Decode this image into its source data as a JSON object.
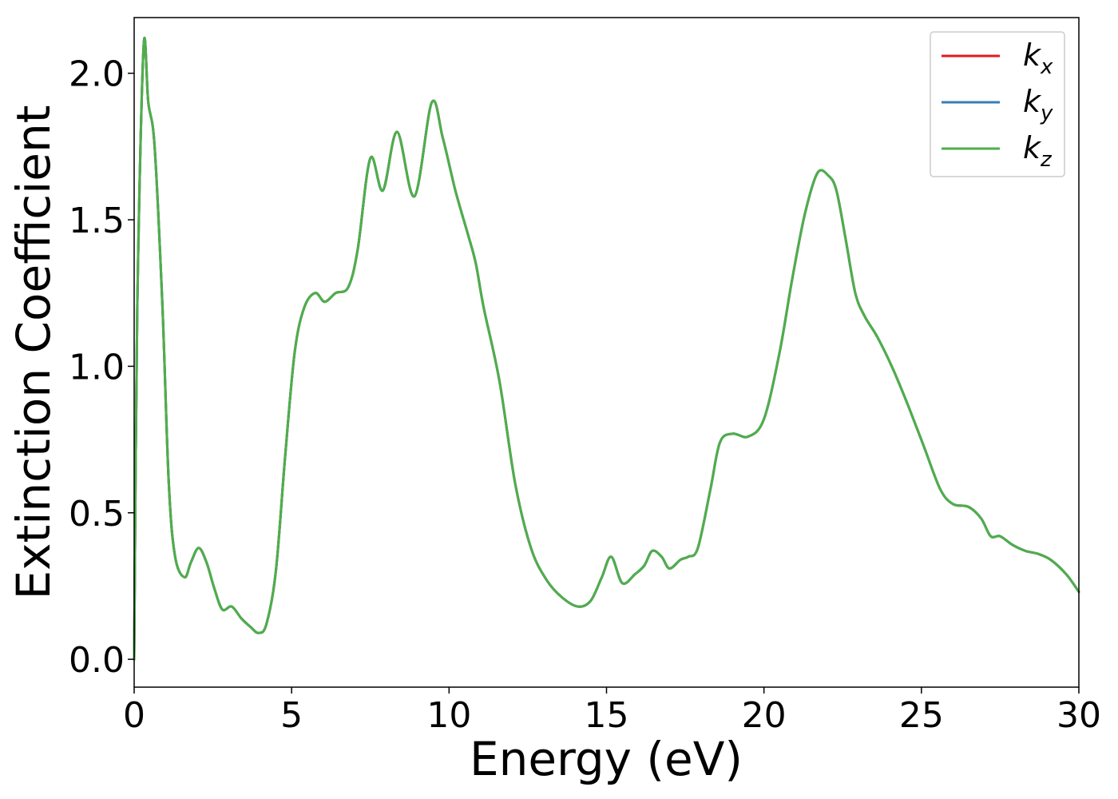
{
  "chart_data": {
    "type": "line",
    "xlabel": "Energy (eV)",
    "ylabel": "Extinction Coefficient",
    "xlim": [
      0,
      30
    ],
    "ylim": [
      -0.095,
      2.19
    ],
    "xticks": [
      0,
      5,
      10,
      15,
      20,
      25,
      30
    ],
    "xtick_labels": [
      "0",
      "5",
      "10",
      "15",
      "20",
      "25",
      "30"
    ],
    "yticks": [
      0.0,
      0.5,
      1.0,
      1.5,
      2.0
    ],
    "ytick_labels": [
      "0.0",
      "0.5",
      "1.0",
      "1.5",
      "2.0"
    ],
    "grid": false,
    "legend_position": "top-right",
    "series": [
      {
        "name": "k_x",
        "label_main": "k",
        "label_sub": "x",
        "color": "#e41a1c",
        "x": [
          0,
          0.1,
          0.3,
          0.45,
          0.65,
          0.9,
          1.1,
          1.3,
          1.6,
          1.8,
          2.05,
          2.3,
          2.55,
          2.8,
          3.1,
          3.4,
          3.7,
          3.95,
          4.2,
          4.5,
          4.8,
          5.1,
          5.4,
          5.75,
          6.05,
          6.4,
          6.8,
          7.1,
          7.5,
          7.9,
          8.35,
          8.9,
          9.45,
          9.8,
          10.2,
          10.6,
          10.85,
          11.1,
          11.6,
          12.1,
          12.6,
          13.1,
          13.6,
          14.1,
          14.5,
          14.85,
          15.15,
          15.5,
          15.9,
          16.2,
          16.45,
          16.75,
          17.0,
          17.35,
          17.6,
          17.9,
          18.3,
          18.6,
          19.0,
          19.5,
          20.0,
          20.5,
          20.9,
          21.3,
          21.7,
          22.05,
          22.3,
          22.6,
          22.9,
          23.2,
          23.6,
          24.1,
          24.6,
          25.1,
          25.6,
          26.0,
          26.5,
          26.9,
          27.2,
          27.5,
          27.9,
          28.3,
          28.7,
          29.1,
          29.6,
          30.0
        ],
        "y": [
          0.0,
          1.2,
          2.09,
          1.9,
          1.75,
          1.2,
          0.6,
          0.35,
          0.28,
          0.33,
          0.38,
          0.33,
          0.24,
          0.17,
          0.18,
          0.14,
          0.11,
          0.09,
          0.12,
          0.3,
          0.7,
          1.05,
          1.2,
          1.25,
          1.22,
          1.25,
          1.27,
          1.4,
          1.71,
          1.6,
          1.8,
          1.58,
          1.9,
          1.78,
          1.6,
          1.45,
          1.35,
          1.2,
          0.95,
          0.6,
          0.38,
          0.27,
          0.21,
          0.18,
          0.2,
          0.28,
          0.35,
          0.26,
          0.29,
          0.32,
          0.37,
          0.35,
          0.31,
          0.34,
          0.35,
          0.38,
          0.58,
          0.74,
          0.77,
          0.76,
          0.82,
          1.05,
          1.3,
          1.52,
          1.66,
          1.65,
          1.6,
          1.43,
          1.25,
          1.17,
          1.1,
          0.99,
          0.86,
          0.72,
          0.58,
          0.53,
          0.52,
          0.48,
          0.42,
          0.42,
          0.39,
          0.37,
          0.36,
          0.34,
          0.29,
          0.23
        ]
      },
      {
        "name": "k_y",
        "label_main": "k",
        "label_sub": "y",
        "color": "#377eb8",
        "x": [
          0,
          0.1,
          0.3,
          0.45,
          0.65,
          0.9,
          1.1,
          1.3,
          1.6,
          1.8,
          2.05,
          2.3,
          2.55,
          2.8,
          3.1,
          3.4,
          3.7,
          3.95,
          4.2,
          4.5,
          4.8,
          5.1,
          5.4,
          5.75,
          6.05,
          6.4,
          6.8,
          7.1,
          7.5,
          7.9,
          8.35,
          8.9,
          9.45,
          9.8,
          10.2,
          10.6,
          10.85,
          11.1,
          11.6,
          12.1,
          12.6,
          13.1,
          13.6,
          14.1,
          14.5,
          14.85,
          15.15,
          15.5,
          15.9,
          16.2,
          16.45,
          16.75,
          17.0,
          17.35,
          17.6,
          17.9,
          18.3,
          18.6,
          19.0,
          19.5,
          20.0,
          20.5,
          20.9,
          21.3,
          21.7,
          22.05,
          22.3,
          22.6,
          22.9,
          23.2,
          23.6,
          24.1,
          24.6,
          25.1,
          25.6,
          26.0,
          26.5,
          26.9,
          27.2,
          27.5,
          27.9,
          28.3,
          28.7,
          29.1,
          29.6,
          30.0
        ],
        "y": [
          0.0,
          1.2,
          2.09,
          1.9,
          1.75,
          1.2,
          0.6,
          0.35,
          0.28,
          0.33,
          0.38,
          0.33,
          0.24,
          0.17,
          0.18,
          0.14,
          0.11,
          0.09,
          0.12,
          0.3,
          0.7,
          1.05,
          1.2,
          1.25,
          1.22,
          1.25,
          1.27,
          1.4,
          1.71,
          1.6,
          1.8,
          1.58,
          1.9,
          1.78,
          1.6,
          1.45,
          1.35,
          1.2,
          0.95,
          0.6,
          0.38,
          0.27,
          0.21,
          0.18,
          0.2,
          0.28,
          0.35,
          0.26,
          0.29,
          0.32,
          0.37,
          0.35,
          0.31,
          0.34,
          0.35,
          0.38,
          0.58,
          0.74,
          0.77,
          0.76,
          0.82,
          1.05,
          1.3,
          1.52,
          1.66,
          1.65,
          1.6,
          1.43,
          1.25,
          1.17,
          1.1,
          0.99,
          0.86,
          0.72,
          0.58,
          0.53,
          0.52,
          0.48,
          0.42,
          0.42,
          0.39,
          0.37,
          0.36,
          0.34,
          0.29,
          0.23
        ]
      },
      {
        "name": "k_z",
        "label_main": "k",
        "label_sub": "z",
        "color": "#4daf4a",
        "x": [
          0,
          0.1,
          0.3,
          0.45,
          0.65,
          0.9,
          1.1,
          1.3,
          1.6,
          1.8,
          2.05,
          2.3,
          2.55,
          2.8,
          3.1,
          3.4,
          3.7,
          3.95,
          4.2,
          4.5,
          4.8,
          5.1,
          5.4,
          5.75,
          6.05,
          6.4,
          6.8,
          7.1,
          7.5,
          7.9,
          8.35,
          8.9,
          9.45,
          9.8,
          10.2,
          10.6,
          10.85,
          11.1,
          11.6,
          12.1,
          12.6,
          13.1,
          13.6,
          14.1,
          14.5,
          14.85,
          15.15,
          15.5,
          15.9,
          16.2,
          16.45,
          16.75,
          17.0,
          17.35,
          17.6,
          17.9,
          18.3,
          18.6,
          19.0,
          19.5,
          20.0,
          20.5,
          20.9,
          21.3,
          21.7,
          22.05,
          22.3,
          22.6,
          22.9,
          23.2,
          23.6,
          24.1,
          24.6,
          25.1,
          25.6,
          26.0,
          26.5,
          26.9,
          27.2,
          27.5,
          27.9,
          28.3,
          28.7,
          29.1,
          29.6,
          30.0
        ],
        "y": [
          0.0,
          1.2,
          2.09,
          1.9,
          1.75,
          1.2,
          0.6,
          0.35,
          0.28,
          0.33,
          0.38,
          0.33,
          0.24,
          0.17,
          0.18,
          0.14,
          0.11,
          0.09,
          0.12,
          0.3,
          0.7,
          1.05,
          1.2,
          1.25,
          1.22,
          1.25,
          1.27,
          1.4,
          1.71,
          1.6,
          1.8,
          1.58,
          1.9,
          1.78,
          1.6,
          1.45,
          1.35,
          1.2,
          0.95,
          0.6,
          0.38,
          0.27,
          0.21,
          0.18,
          0.2,
          0.28,
          0.35,
          0.26,
          0.29,
          0.32,
          0.37,
          0.35,
          0.31,
          0.34,
          0.35,
          0.38,
          0.58,
          0.74,
          0.77,
          0.76,
          0.82,
          1.05,
          1.3,
          1.52,
          1.66,
          1.65,
          1.6,
          1.43,
          1.25,
          1.17,
          1.1,
          0.99,
          0.86,
          0.72,
          0.58,
          0.53,
          0.52,
          0.48,
          0.42,
          0.42,
          0.39,
          0.37,
          0.36,
          0.34,
          0.29,
          0.23
        ]
      }
    ]
  }
}
